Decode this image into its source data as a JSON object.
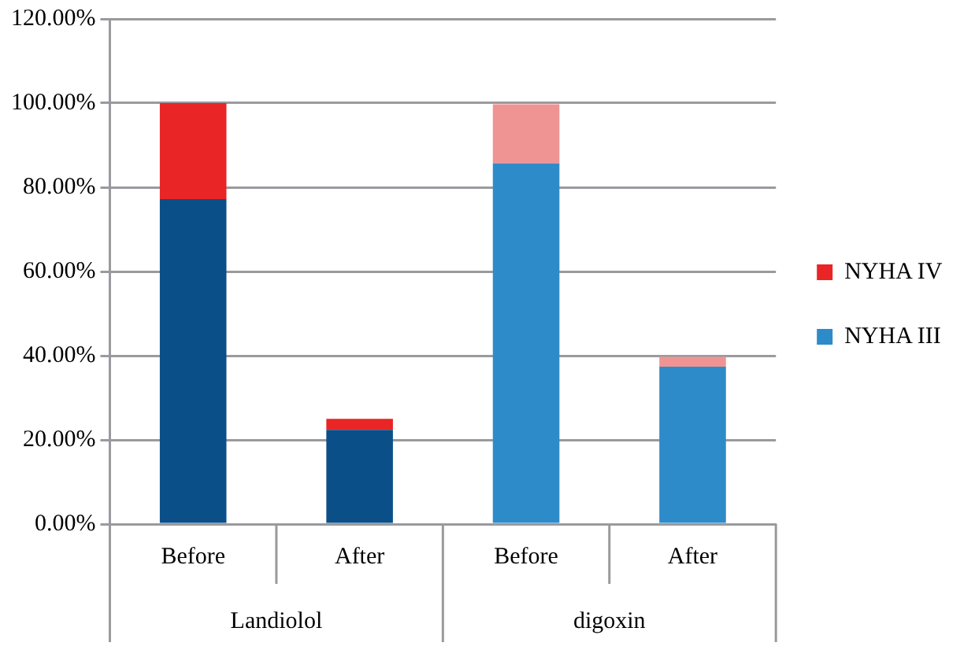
{
  "chart_data": {
    "type": "bar",
    "stacked": true,
    "categories": [
      "Before",
      "After",
      "Before",
      "After"
    ],
    "series": [
      {
        "name": "NYHA III",
        "color": "#2e8bc9",
        "colors": [
          "#0b4f88",
          "#0b4f88",
          "#2e8bc9",
          "#2e8bc9"
        ],
        "values": [
          77.2,
          22.4,
          85.7,
          37.4
        ]
      },
      {
        "name": "NYHA IV",
        "color": "#e92526",
        "colors": [
          "#e92526",
          "#e92526",
          "#f09493",
          "#f09493"
        ],
        "values": [
          22.8,
          2.6,
          14.0,
          2.3
        ]
      }
    ],
    "annotations": [
      "Landiolol",
      "digoxin"
    ],
    "ylim": [
      0,
      120
    ],
    "yticks": [
      {
        "value": 0,
        "label": "0.00%"
      },
      {
        "value": 20,
        "label": "20.00%"
      },
      {
        "value": 40,
        "label": "40.00%"
      },
      {
        "value": 60,
        "label": "60.00%"
      },
      {
        "value": 80,
        "label": "80.00%"
      },
      {
        "value": 100,
        "label": "100.00%"
      },
      {
        "value": 120,
        "label": "120.00%"
      }
    ],
    "grid": "y",
    "legend": "right"
  }
}
